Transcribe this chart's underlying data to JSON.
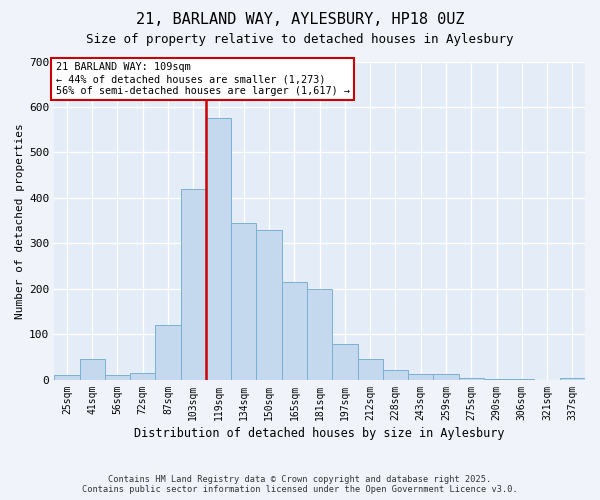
{
  "title": "21, BARLAND WAY, AYLESBURY, HP18 0UZ",
  "subtitle": "Size of property relative to detached houses in Aylesbury",
  "xlabel": "Distribution of detached houses by size in Aylesbury",
  "ylabel": "Number of detached properties",
  "bar_color": "#c5d9ee",
  "bar_edge_color": "#7ab0d4",
  "categories": [
    "25sqm",
    "41sqm",
    "56sqm",
    "72sqm",
    "87sqm",
    "103sqm",
    "119sqm",
    "134sqm",
    "150sqm",
    "165sqm",
    "181sqm",
    "197sqm",
    "212sqm",
    "228sqm",
    "243sqm",
    "259sqm",
    "275sqm",
    "290sqm",
    "306sqm",
    "321sqm",
    "337sqm"
  ],
  "values": [
    10,
    45,
    10,
    15,
    120,
    420,
    575,
    345,
    330,
    215,
    200,
    80,
    45,
    22,
    12,
    12,
    5,
    3,
    1,
    0,
    5
  ],
  "ylim": [
    0,
    700
  ],
  "yticks": [
    0,
    100,
    200,
    300,
    400,
    500,
    600,
    700
  ],
  "vline_index": 6,
  "marker_label": "21 BARLAND WAY: 109sqm",
  "annotation_line1": "← 44% of detached houses are smaller (1,273)",
  "annotation_line2": "56% of semi-detached houses are larger (1,617) →",
  "vline_color": "#cc0000",
  "annotation_edge_color": "#cc0000",
  "footnote1": "Contains HM Land Registry data © Crown copyright and database right 2025.",
  "footnote2": "Contains public sector information licensed under the Open Government Licence v3.0.",
  "fig_bg": "#f0f4fa",
  "plot_bg": "#e4edf7"
}
